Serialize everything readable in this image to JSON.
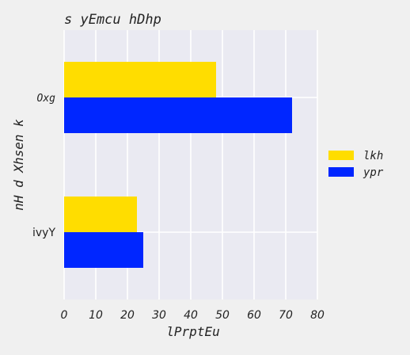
{
  "colors": {
    "background": "#f0f0f0",
    "plot_background": "#eaeaf2",
    "grid": "#ffffff"
  },
  "chart_data": {
    "type": "bar",
    "orientation": "horizontal",
    "title": "s yEmcu hDhp",
    "xlabel": "lPrptEu",
    "ylabel": "nH d Xhsen  k",
    "categories": [
      "Oxg",
      "ivyY"
    ],
    "x_ticks": [
      "0",
      "10",
      "20",
      "30",
      "40",
      "50",
      "60",
      "70",
      "80"
    ],
    "xlim": [
      0,
      80
    ],
    "grid": true,
    "legend_position": "right",
    "series": [
      {
        "name": "lkh",
        "color": "#ffdd00",
        "values": [
          48,
          23
        ]
      },
      {
        "name": "ypr",
        "color": "#0026ff",
        "values": [
          72,
          25
        ]
      }
    ]
  }
}
